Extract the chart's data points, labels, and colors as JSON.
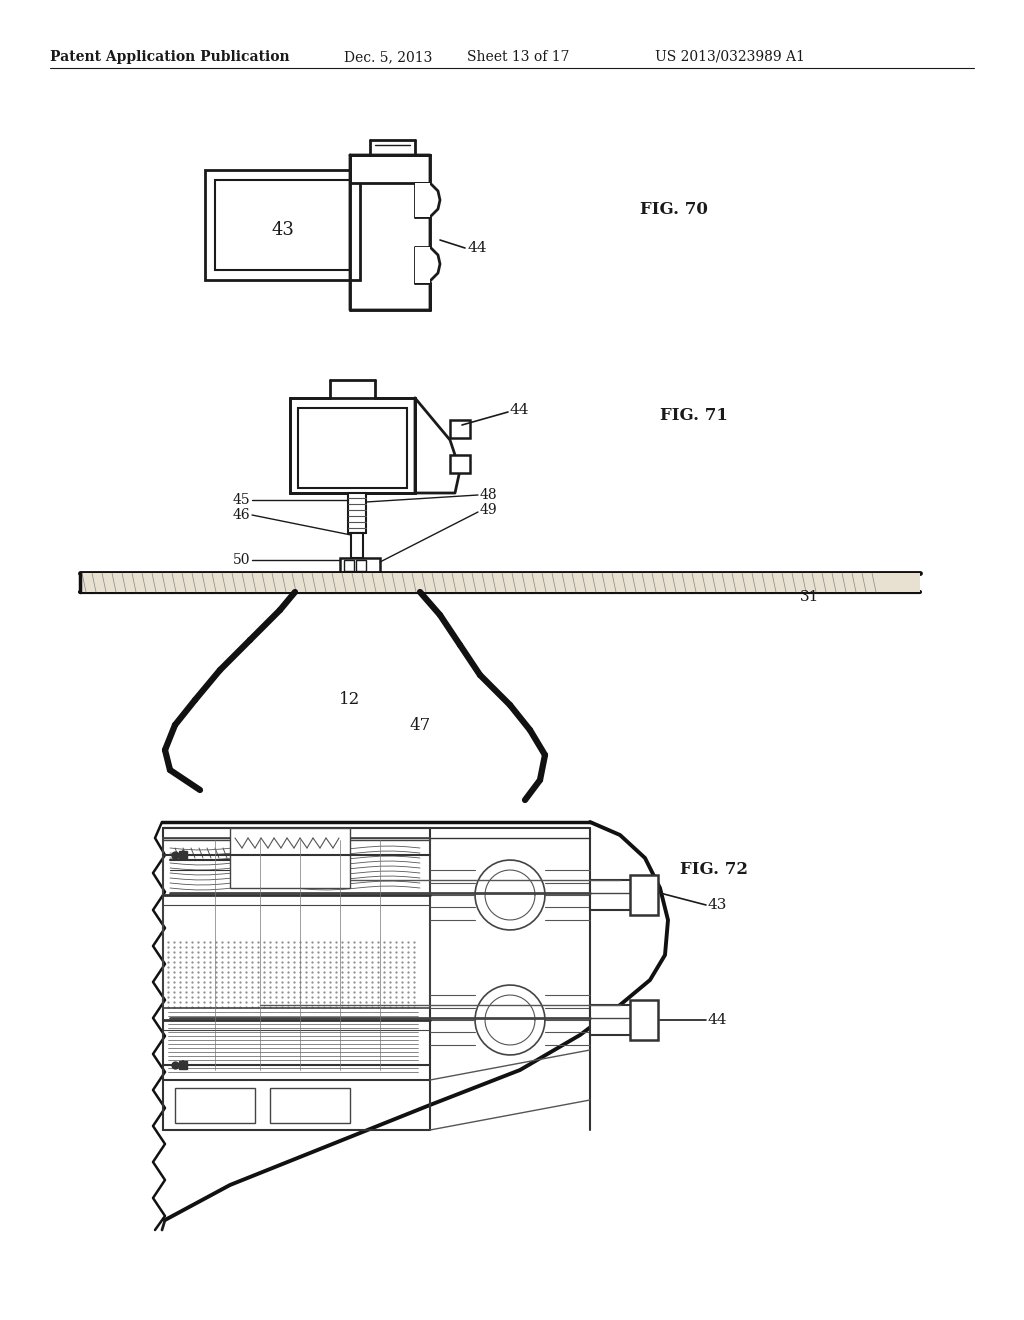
{
  "background_color": "#ffffff",
  "header_text": "Patent Application Publication",
  "header_date": "Dec. 5, 2013",
  "header_sheet": "Sheet 13 of 17",
  "header_patent": "US 2013/0323989 A1",
  "fig70_label": "FIG. 70",
  "fig71_label": "FIG. 71",
  "fig72_label": "FIG. 72",
  "line_color": "#1a1a1a",
  "text_color": "#1a1a1a"
}
